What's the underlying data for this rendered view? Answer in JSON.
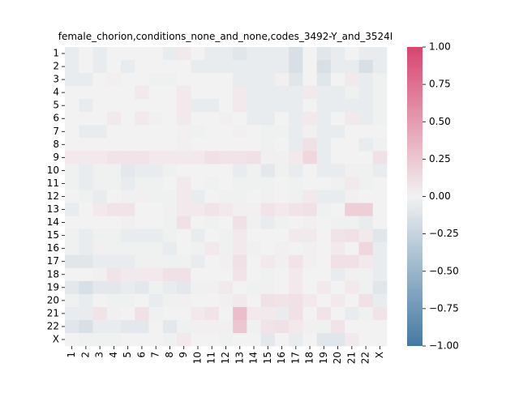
{
  "chart_data": {
    "type": "heatmap",
    "title": "female_chorion,conditions_none_and_none,codes_3492-Y_and_3524I",
    "xlabel": "",
    "ylabel": "",
    "x_categories": [
      "1",
      "2",
      "3",
      "4",
      "5",
      "6",
      "7",
      "8",
      "9",
      "10",
      "11",
      "12",
      "13",
      "14",
      "15",
      "16",
      "17",
      "18",
      "19",
      "20",
      "21",
      "22",
      "X"
    ],
    "y_categories": [
      "1",
      "2",
      "3",
      "4",
      "5",
      "6",
      "7",
      "8",
      "9",
      "10",
      "11",
      "12",
      "13",
      "14",
      "15",
      "16",
      "17",
      "18",
      "19",
      "20",
      "21",
      "22",
      "X"
    ],
    "colorbar": {
      "min": -1.0,
      "max": 1.0,
      "ticks": [
        -1.0,
        -0.75,
        -0.5,
        -0.25,
        0.0,
        0.25,
        0.5,
        0.75,
        1.0
      ],
      "tick_labels": [
        "−1.00",
        "−0.75",
        "−0.50",
        "−0.25",
        "0.00",
        "0.25",
        "0.50",
        "0.75",
        "1.00"
      ],
      "low_color": "#4479a4",
      "mid_color": "#f2f2f2",
      "high_color": "#d8456f"
    },
    "values": [
      [
        -0.05,
        0.0,
        -0.05,
        0.0,
        0.0,
        0.0,
        0.0,
        -0.05,
        0.05,
        0.0,
        -0.05,
        -0.05,
        -0.1,
        -0.05,
        -0.05,
        -0.05,
        -0.15,
        0.0,
        -0.1,
        -0.05,
        0.0,
        -0.05,
        -0.05
      ],
      [
        -0.05,
        0.0,
        -0.05,
        0.0,
        -0.05,
        0.0,
        0.0,
        0.0,
        0.0,
        -0.05,
        -0.05,
        -0.05,
        -0.05,
        -0.05,
        -0.05,
        -0.05,
        -0.15,
        0.0,
        -0.15,
        -0.05,
        -0.05,
        -0.15,
        -0.05
      ],
      [
        -0.05,
        -0.05,
        0.0,
        0.02,
        0.0,
        0.0,
        -0.02,
        -0.02,
        0.0,
        0.0,
        0.0,
        0.0,
        -0.05,
        -0.05,
        -0.05,
        0.02,
        -0.1,
        0.0,
        -0.1,
        0.0,
        0.05,
        -0.05,
        -0.02
      ],
      [
        0.0,
        0.0,
        0.0,
        0.0,
        0.0,
        0.05,
        0.0,
        0.0,
        0.05,
        0.0,
        0.0,
        0.0,
        0.05,
        -0.05,
        -0.05,
        -0.05,
        -0.05,
        0.05,
        -0.05,
        -0.05,
        -0.02,
        -0.05,
        -0.02
      ],
      [
        0.0,
        -0.05,
        0.0,
        0.0,
        0.0,
        0.0,
        0.0,
        0.0,
        0.05,
        -0.05,
        -0.05,
        0.0,
        0.05,
        -0.05,
        -0.05,
        -0.05,
        -0.05,
        0.0,
        -0.05,
        -0.05,
        -0.05,
        -0.05,
        -0.02
      ],
      [
        0.0,
        0.0,
        0.0,
        0.05,
        0.0,
        0.05,
        0.02,
        0.0,
        0.05,
        0.0,
        0.0,
        0.02,
        0.0,
        -0.05,
        -0.05,
        0.0,
        -0.05,
        0.05,
        -0.05,
        0.0,
        0.05,
        -0.05,
        -0.02
      ],
      [
        0.0,
        -0.05,
        -0.05,
        0.0,
        0.0,
        0.0,
        0.0,
        0.0,
        0.02,
        -0.02,
        0.0,
        0.0,
        0.02,
        0.0,
        -0.02,
        -0.02,
        -0.05,
        0.02,
        -0.05,
        -0.05,
        0.0,
        0.0,
        0.0
      ],
      [
        0.0,
        0.0,
        0.0,
        0.0,
        0.0,
        0.0,
        0.0,
        0.0,
        0.02,
        0.0,
        0.0,
        0.0,
        0.0,
        0.0,
        -0.02,
        0.0,
        -0.05,
        0.1,
        -0.05,
        0.0,
        0.0,
        -0.05,
        -0.02
      ],
      [
        0.05,
        0.05,
        0.05,
        0.08,
        0.08,
        0.08,
        0.05,
        0.05,
        0.05,
        0.05,
        0.1,
        0.08,
        0.08,
        0.1,
        0.02,
        0.02,
        0.05,
        0.15,
        -0.05,
        0.0,
        0.0,
        0.0,
        0.1
      ],
      [
        -0.02,
        -0.05,
        -0.02,
        -0.02,
        -0.08,
        -0.05,
        -0.05,
        -0.02,
        0.0,
        0.0,
        0.0,
        0.0,
        -0.05,
        -0.02,
        -0.08,
        -0.02,
        -0.05,
        0.0,
        -0.05,
        -0.05,
        0.02,
        -0.02,
        -0.05
      ],
      [
        -0.02,
        -0.05,
        -0.02,
        -0.02,
        -0.05,
        -0.02,
        -0.02,
        0.0,
        0.05,
        0.0,
        -0.02,
        0.0,
        -0.02,
        -0.02,
        -0.02,
        0.0,
        -0.02,
        0.0,
        0.0,
        -0.02,
        0.05,
        -0.02,
        0.0
      ],
      [
        0.0,
        -0.02,
        -0.05,
        0.0,
        -0.02,
        0.02,
        -0.02,
        -0.02,
        0.05,
        -0.05,
        0.0,
        -0.02,
        -0.02,
        0.0,
        -0.02,
        0.0,
        -0.02,
        0.05,
        -0.05,
        -0.05,
        0.02,
        0.0,
        0.0
      ],
      [
        -0.05,
        0.0,
        0.05,
        0.08,
        0.08,
        0.0,
        0.0,
        0.02,
        0.05,
        0.05,
        0.08,
        0.05,
        0.02,
        0.02,
        0.08,
        0.05,
        0.08,
        0.1,
        -0.02,
        0.0,
        0.2,
        0.2,
        0.0
      ],
      [
        0.0,
        0.0,
        0.0,
        0.0,
        0.02,
        0.0,
        0.0,
        -0.02,
        0.1,
        0.0,
        -0.02,
        0.0,
        0.1,
        -0.02,
        -0.05,
        -0.02,
        0.0,
        0.02,
        0.0,
        -0.02,
        -0.02,
        -0.05,
        0.0
      ],
      [
        -0.02,
        -0.05,
        -0.02,
        -0.02,
        -0.05,
        -0.05,
        -0.05,
        -0.02,
        0.0,
        -0.05,
        0.0,
        -0.02,
        0.05,
        0.0,
        0.0,
        0.0,
        0.05,
        0.05,
        0.0,
        0.08,
        0.1,
        0.05,
        -0.1
      ],
      [
        -0.02,
        -0.05,
        0.02,
        -0.02,
        -0.02,
        -0.02,
        -0.02,
        -0.05,
        0.0,
        -0.02,
        0.05,
        -0.02,
        0.05,
        -0.02,
        0.0,
        0.02,
        0.0,
        0.02,
        0.0,
        0.05,
        0.0,
        0.15,
        -0.05
      ],
      [
        -0.1,
        -0.1,
        -0.05,
        -0.05,
        -0.05,
        -0.02,
        -0.02,
        -0.02,
        -0.02,
        -0.05,
        0.0,
        0.02,
        0.1,
        0.0,
        0.05,
        0.02,
        0.08,
        0.02,
        0.0,
        0.1,
        0.1,
        0.05,
        -0.05
      ],
      [
        0.0,
        0.0,
        0.02,
        0.08,
        0.05,
        0.05,
        0.05,
        0.1,
        0.1,
        0.0,
        0.0,
        0.0,
        0.08,
        0.0,
        -0.02,
        0.0,
        0.05,
        0.0,
        0.0,
        -0.05,
        0.02,
        -0.02,
        -0.05
      ],
      [
        -0.08,
        -0.15,
        -0.08,
        -0.08,
        -0.05,
        -0.08,
        -0.02,
        -0.05,
        -0.08,
        -0.02,
        0.02,
        0.05,
        0.0,
        -0.02,
        -0.02,
        0.0,
        0.05,
        0.0,
        0.05,
        0.0,
        0.05,
        -0.02,
        -0.1
      ],
      [
        -0.02,
        -0.05,
        0.0,
        -0.02,
        -0.02,
        0.0,
        -0.05,
        -0.02,
        0.02,
        0.0,
        0.0,
        0.02,
        0.05,
        0.0,
        0.1,
        0.08,
        0.1,
        0.05,
        0.0,
        0.05,
        0.0,
        0.1,
        -0.05
      ],
      [
        -0.05,
        -0.05,
        0.08,
        0.02,
        0.0,
        0.1,
        -0.02,
        0.0,
        0.0,
        0.05,
        0.08,
        0.0,
        0.3,
        0.05,
        0.05,
        -0.05,
        0.1,
        0.0,
        0.08,
        0.0,
        -0.05,
        -0.02,
        0.08
      ],
      [
        -0.1,
        -0.15,
        -0.05,
        -0.05,
        -0.08,
        -0.08,
        0.0,
        -0.08,
        -0.02,
        0.02,
        0.02,
        0.02,
        0.25,
        -0.02,
        0.08,
        0.1,
        0.05,
        0.02,
        -0.02,
        0.08,
        0.0,
        0.0,
        0.0
      ],
      [
        0.0,
        -0.02,
        -0.02,
        -0.02,
        0.0,
        0.0,
        0.0,
        -0.02,
        0.05,
        0.0,
        0.0,
        -0.02,
        0.0,
        0.0,
        -0.08,
        0.0,
        -0.05,
        0.0,
        -0.1,
        -0.1,
        0.05,
        0.0,
        0.0
      ]
    ]
  }
}
